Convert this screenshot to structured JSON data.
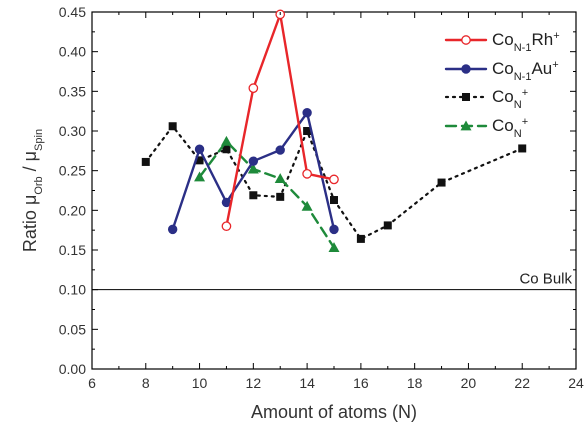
{
  "chart_data": {
    "type": "line",
    "xlabel": "Amount of atoms (N)",
    "ylabel": {
      "base": "Ratio μ",
      "sub1": "Orb",
      "mid": " / μ",
      "sub2": "Spin"
    },
    "xlim": [
      6,
      24
    ],
    "ylim": [
      0.0,
      0.45
    ],
    "xticks": [
      6,
      8,
      10,
      12,
      14,
      16,
      18,
      20,
      22,
      24
    ],
    "yticks": [
      0.0,
      0.05,
      0.1,
      0.15,
      0.2,
      0.25,
      0.3,
      0.35,
      0.4,
      0.45
    ],
    "grid": false,
    "legend_position": "top-right",
    "reference_line": {
      "y": 0.1,
      "label": "Co Bulk"
    },
    "series": [
      {
        "name": {
          "base": "Co",
          "sub": "N-1",
          "tail": "Rh",
          "sup": "+"
        },
        "color": "#e8262a",
        "line": "solid",
        "marker": "open-circle",
        "x": [
          11,
          12,
          13,
          14,
          15
        ],
        "y": [
          0.18,
          0.354,
          0.447,
          0.246,
          0.239
        ]
      },
      {
        "name": {
          "base": "Co",
          "sub": "N-1",
          "tail": "Au",
          "sup": "+"
        },
        "color": "#2b2f86",
        "line": "solid",
        "marker": "filled-circle",
        "x": [
          9,
          10,
          11,
          12,
          13,
          14,
          15
        ],
        "y": [
          0.176,
          0.277,
          0.21,
          0.262,
          0.276,
          0.323,
          0.176
        ]
      },
      {
        "name": {
          "base": "Co",
          "sub": "N",
          "tail": "",
          "sup": "+"
        },
        "color": "#111111",
        "line": "dotted",
        "marker": "square",
        "x": [
          8,
          9,
          10,
          11,
          12,
          13,
          14,
          15,
          16,
          17,
          19,
          22
        ],
        "y": [
          0.261,
          0.306,
          0.263,
          0.277,
          0.219,
          0.217,
          0.3,
          0.213,
          0.164,
          0.181,
          0.235,
          0.278
        ]
      },
      {
        "name": {
          "base": "Co",
          "sub": "N",
          "tail": "",
          "sup": "+"
        },
        "color": "#1e8a3a",
        "line": "dashed",
        "marker": "triangle",
        "x": [
          10,
          11,
          12,
          13,
          14,
          15
        ],
        "y": [
          0.242,
          0.287,
          0.252,
          0.24,
          0.205,
          0.153
        ]
      }
    ]
  }
}
